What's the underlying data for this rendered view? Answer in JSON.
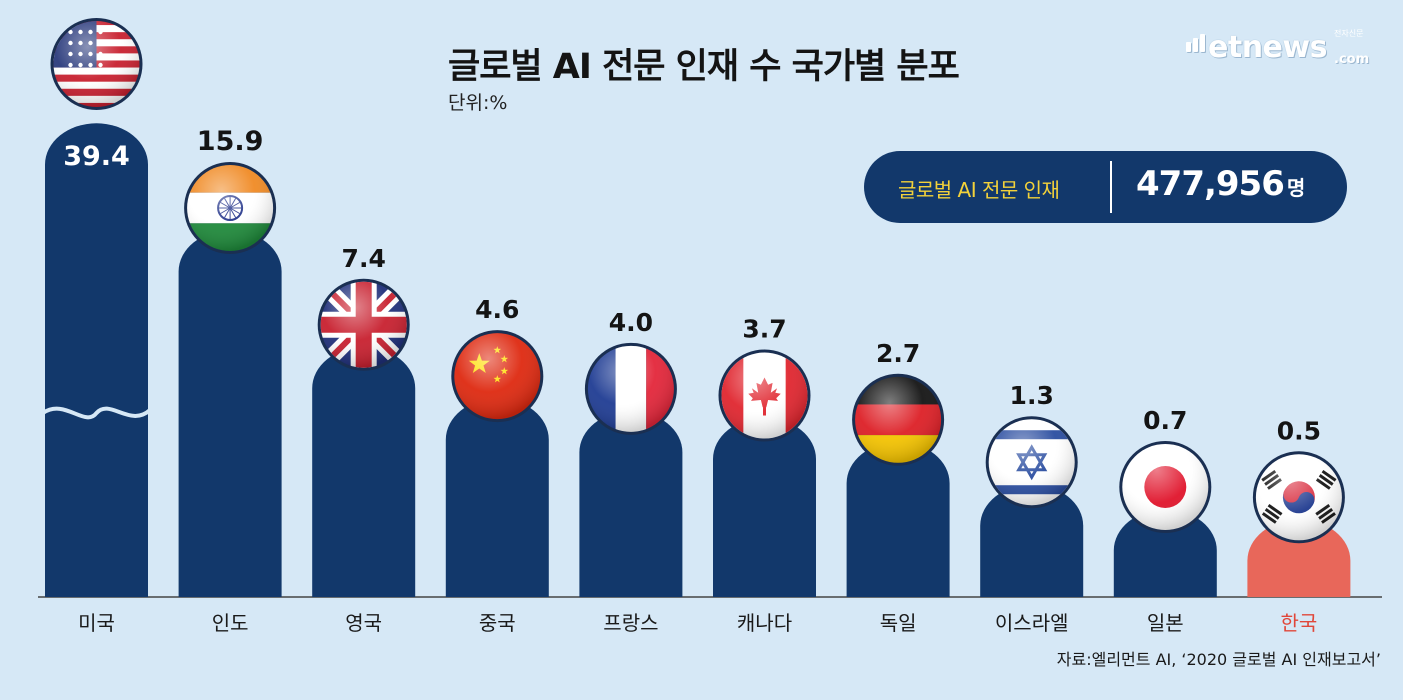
{
  "header": {
    "title": "글로벌 AI 전문 인재 수 국가별 분포",
    "unit": "단위:%",
    "logo_text": "etnews",
    "logo_small": "전자신문",
    "logo_com": ".com"
  },
  "total_box": {
    "label": "글로벌 AI 전문 인재",
    "value": "477,956",
    "unit": "명",
    "bg_color": "#12386b",
    "label_color": "#f3d23a"
  },
  "source": "자료:엘리먼트 AI, ‘2020 글로벌 AI 인재보고서’",
  "colors": {
    "bar": "#12386b",
    "highlight_bar": "#e8675a",
    "highlight_label": "#e0473a",
    "background": "#d6e8f6"
  },
  "chart_data": {
    "type": "bar",
    "title": "글로벌 AI 전문 인재 수 국가별 분포",
    "unit": "단위:%",
    "categories": [
      "미국",
      "인도",
      "영국",
      "중국",
      "프랑스",
      "캐나다",
      "독일",
      "이스라엘",
      "일본",
      "한국"
    ],
    "values": [
      39.4,
      15.9,
      7.4,
      4.6,
      4.0,
      3.7,
      2.7,
      1.3,
      0.7,
      0.5
    ],
    "value_labels": [
      "39.4",
      "15.9",
      "7.4",
      "4.6",
      "4.0",
      "3.7",
      "2.7",
      "1.3",
      "0.7",
      "0.5"
    ],
    "flags": [
      "us-flag",
      "india-flag",
      "uk-flag",
      "china-flag",
      "france-flag",
      "canada-flag",
      "germany-flag",
      "israel-flag",
      "japan-flag",
      "korea-flag"
    ],
    "highlight": "한국",
    "broken_axis_category": "미국",
    "grid": false,
    "legend": "none"
  }
}
